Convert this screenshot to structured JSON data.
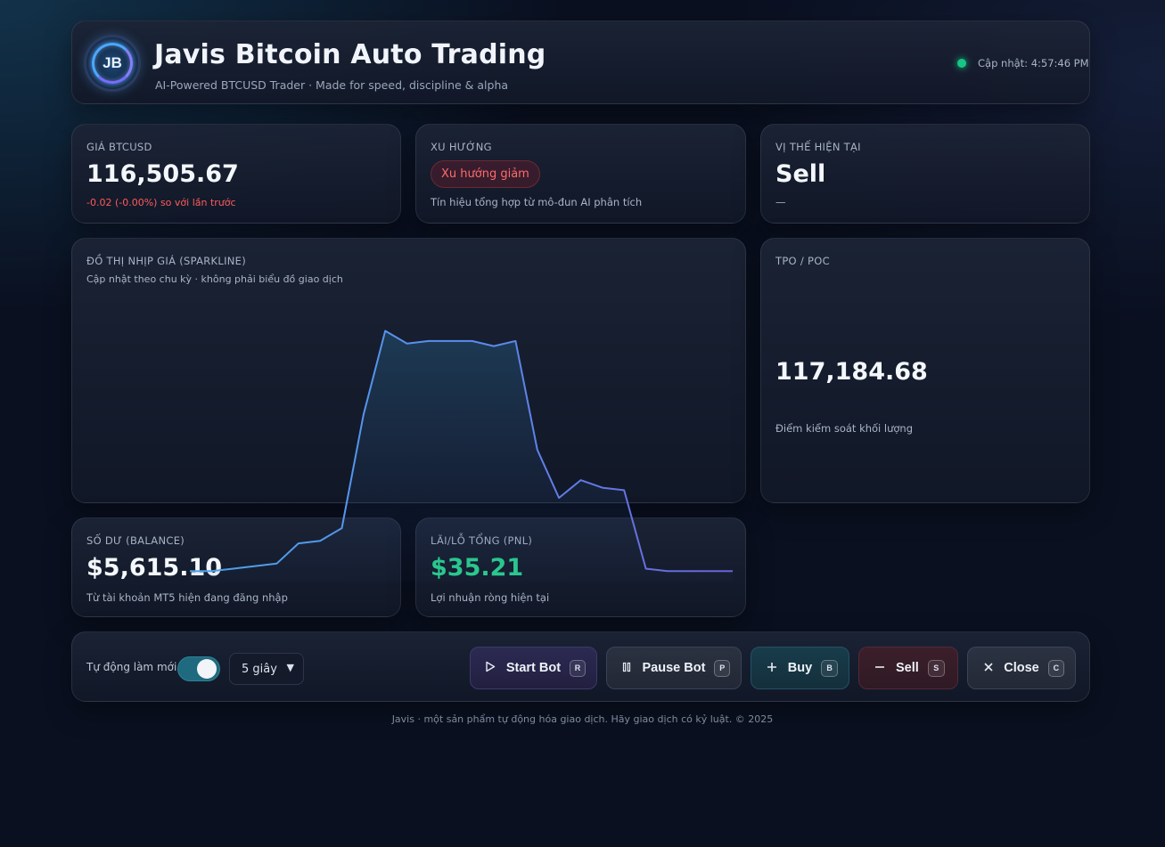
{
  "header": {
    "logo_text": "JB",
    "title": "Javis Bitcoin Auto Trading",
    "subtitle": "AI-Powered BTCUSD Trader · Made for speed, discipline & alpha",
    "update_label": "Cập nhật: 4:57:46 PM",
    "status_color": "#16c784"
  },
  "price": {
    "label": "GIÁ BTCUSD",
    "value": "116,505.67",
    "change": "-0.02 (-0.00%) so với lần trước",
    "change_color": "#ff5a5a"
  },
  "trend": {
    "label": "XU HƯỚNG",
    "badge": "Xu hướng giảm",
    "note": "Tín hiệu tổng hợp từ mô-đun AI phân tích"
  },
  "position": {
    "label": "VỊ THẾ HIỆN TẠI",
    "value": "Sell",
    "note": "—"
  },
  "sparkline": {
    "label": "ĐỒ THỊ NHỊP GIÁ (SPARKLINE)",
    "note": "Cập nhật theo chu kỳ · không phải biểu đồ giao dịch"
  },
  "tpo": {
    "label": "TPO / POC",
    "value": "117,184.68",
    "note": "Điểm kiểm soát khối lượng"
  },
  "balance": {
    "label": "SỐ DƯ (BALANCE)",
    "value": "$5,615.10",
    "note": "Từ tài khoản MT5 hiện đang đăng nhập"
  },
  "pnl": {
    "label": "LÃI/LỖ TỔNG (PNL)",
    "value": "$35.21",
    "note": "Lợi nhuận ròng hiện tại",
    "value_color": "#2bd08f"
  },
  "controls": {
    "auto_refresh_label": "Tự động làm mới",
    "auto_refresh_on": true,
    "interval_selected": "5 giây",
    "buttons": [
      {
        "label": "Start Bot",
        "key": "R",
        "icon": "play-icon"
      },
      {
        "label": "Pause Bot",
        "key": "P",
        "icon": "pause-icon"
      },
      {
        "label": "Buy",
        "key": "B",
        "icon": "plus-icon"
      },
      {
        "label": "Sell",
        "key": "S",
        "icon": "minus-icon"
      },
      {
        "label": "Close",
        "key": "C",
        "icon": "close-icon"
      }
    ]
  },
  "footer": "Javis · một sản phẩm tự động hóa giao dịch. Hãy giao dịch có kỷ luật. © 2025",
  "chart_data": {
    "type": "line",
    "title": "",
    "series": [
      {
        "values": [
          0.02,
          0.02,
          0.03,
          0.04,
          0.05,
          0.13,
          0.14,
          0.19,
          0.64,
          0.97,
          0.92,
          0.93,
          0.93,
          0.93,
          0.91,
          0.93,
          0.5,
          0.31,
          0.38,
          0.35,
          0.34,
          0.03,
          0.02,
          0.02,
          0.02,
          0.02
        ],
        "color": "#5b8def"
      }
    ],
    "normalized": true,
    "grid": false
  }
}
